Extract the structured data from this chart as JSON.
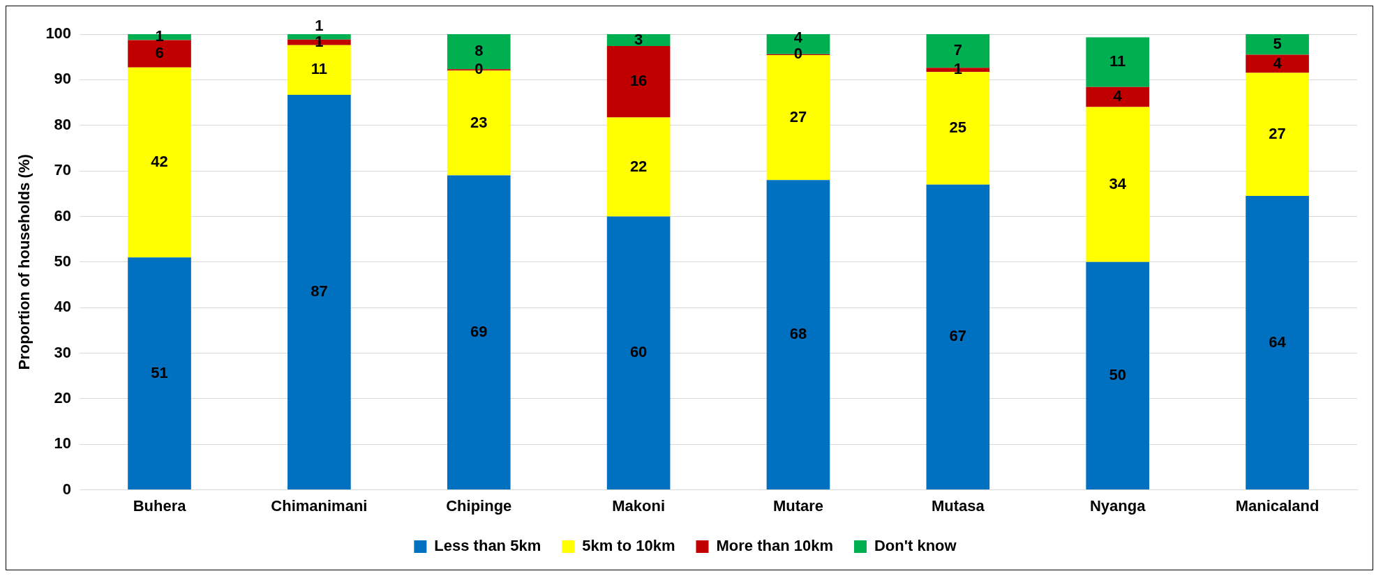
{
  "chart_data": {
    "type": "bar",
    "stacked": true,
    "ylabel": "Proportion of households (%)",
    "categories": [
      "Buhera",
      "Chimanimani",
      "Chipinge",
      "Makoni",
      "Mutare",
      "Mutasa",
      "Nyanga",
      "Manicaland"
    ],
    "series": [
      {
        "name": "Less than 5km",
        "color": "#0070c0",
        "values": [
          51,
          86.7,
          69,
          60,
          68,
          67,
          50,
          64.5
        ],
        "value_labels": [
          "51",
          "87",
          "69",
          "60",
          "68",
          "67",
          "50",
          "64"
        ]
      },
      {
        "name": "5km to 10km",
        "color": "#ffff00",
        "values": [
          41.7,
          10.9,
          23,
          21.7,
          27.4,
          24.7,
          34,
          27
        ],
        "value_labels": [
          "42",
          "11",
          "23",
          "22",
          "27",
          "25",
          "34",
          "27"
        ]
      },
      {
        "name": "More than 10km",
        "color": "#c00000",
        "values": [
          6,
          1.2,
          0.3,
          15.7,
          0.2,
          0.9,
          4.4,
          4
        ],
        "value_labels": [
          "6",
          "1",
          "0",
          "16",
          "0",
          "1",
          "4",
          "4"
        ]
      },
      {
        "name": "Don't know",
        "color": "#00b050",
        "values": [
          1.3,
          1.2,
          7.7,
          2.6,
          4.4,
          7.4,
          10.9,
          4.5
        ],
        "value_labels": [
          "1",
          "1",
          "8",
          "3",
          "4",
          "7",
          "11",
          "5"
        ]
      }
    ],
    "ylim": [
      0,
      100
    ],
    "yticks": [
      0,
      10,
      20,
      30,
      40,
      50,
      60,
      70,
      80,
      90,
      100
    ],
    "grid": "y",
    "legend": "bottom"
  }
}
